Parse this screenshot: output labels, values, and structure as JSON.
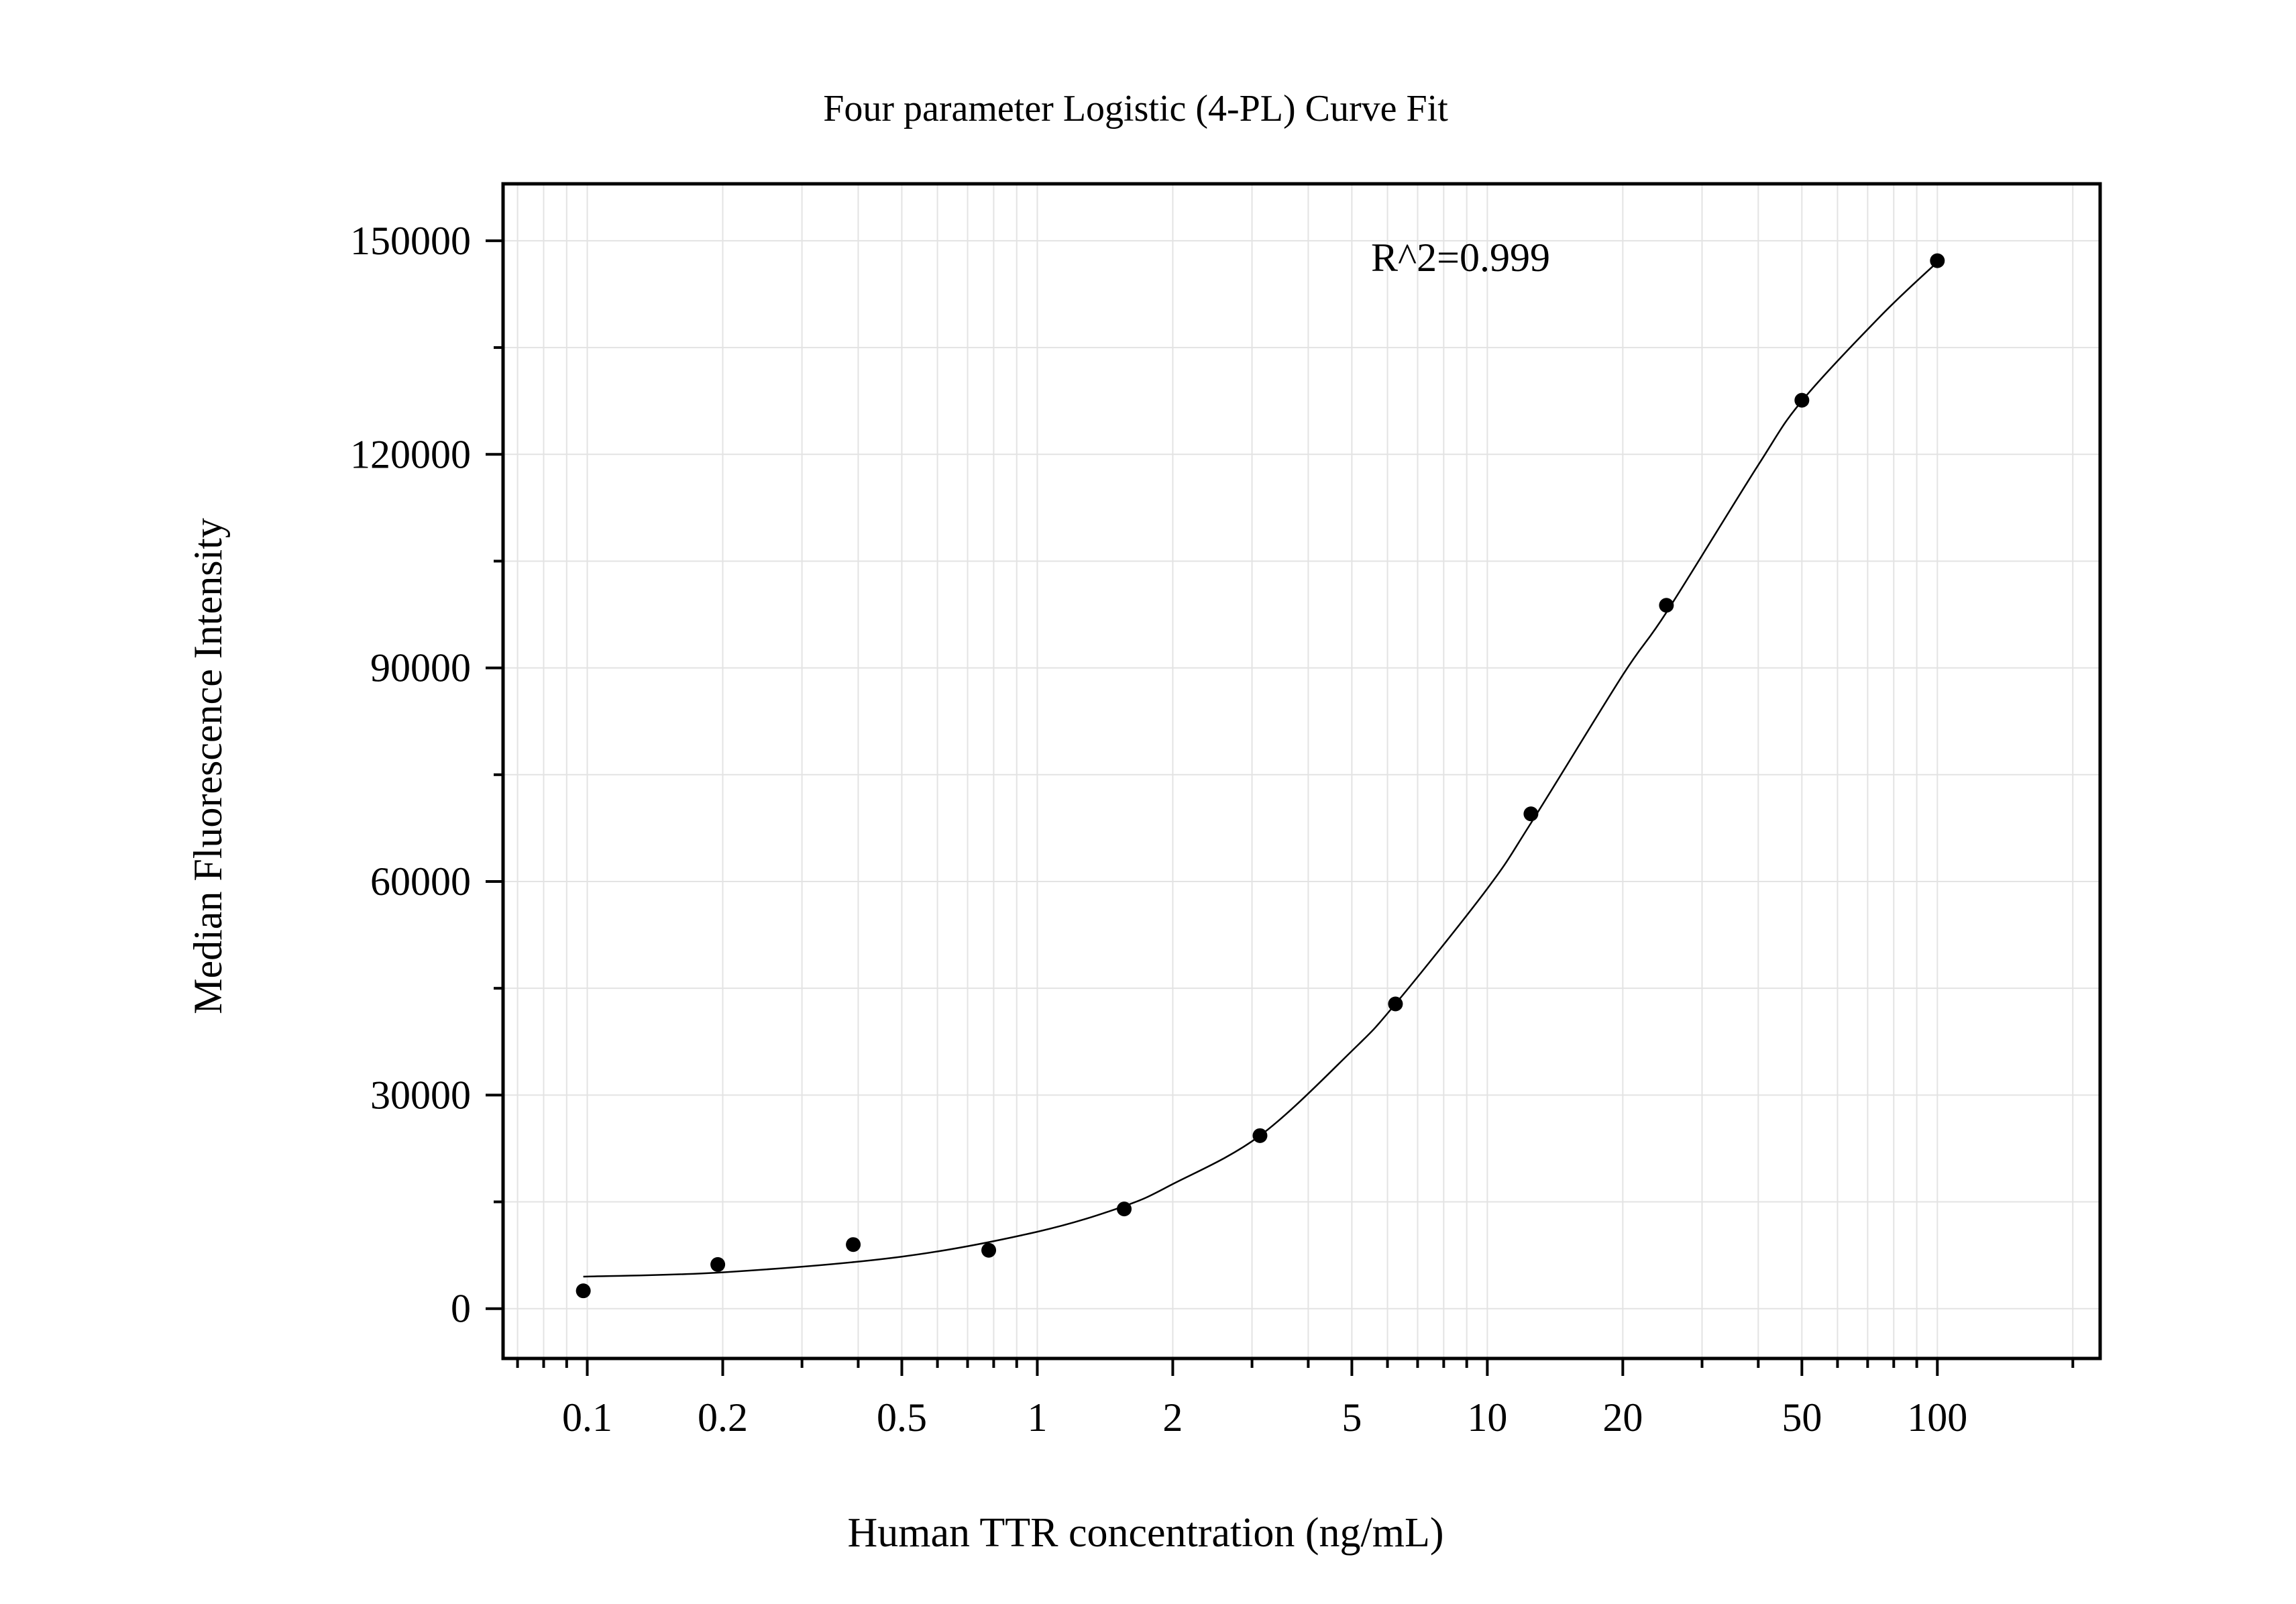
{
  "chart_data": {
    "type": "scatter",
    "title": "Four parameter Logistic (4-PL) Curve Fit",
    "xlabel": "Human TTR concentration (ng/mL)",
    "ylabel": "Median Fluorescence Intensity",
    "annotation": "R^2=0.999",
    "x_scale": "log",
    "xlim": [
      0.065,
      230
    ],
    "ylim": [
      -7000,
      158000
    ],
    "x_ticks": [
      {
        "value": 0.1,
        "label": "0.1"
      },
      {
        "value": 0.2,
        "label": "0.2"
      },
      {
        "value": 0.5,
        "label": "0.5"
      },
      {
        "value": 1,
        "label": "1"
      },
      {
        "value": 2,
        "label": "2"
      },
      {
        "value": 5,
        "label": "5"
      },
      {
        "value": 10,
        "label": "10"
      },
      {
        "value": 20,
        "label": "20"
      },
      {
        "value": 50,
        "label": "50"
      },
      {
        "value": 100,
        "label": "100"
      }
    ],
    "y_ticks": [
      {
        "value": 0,
        "label": "0"
      },
      {
        "value": 30000,
        "label": "30000"
      },
      {
        "value": 60000,
        "label": "60000"
      },
      {
        "value": 90000,
        "label": "90000"
      },
      {
        "value": 120000,
        "label": "120000"
      },
      {
        "value": 150000,
        "label": "150000"
      }
    ],
    "grid": true,
    "series": [
      {
        "type": "scatter",
        "x": [
          0.098,
          0.195,
          0.39,
          0.78,
          1.56,
          3.125,
          6.25,
          12.5,
          25,
          50,
          100
        ],
        "y": [
          2500,
          6200,
          9000,
          8200,
          14000,
          24300,
          42800,
          69500,
          98800,
          127600,
          147200
        ],
        "color": "#000000"
      },
      {
        "type": "line",
        "x": [
          0.098,
          0.2,
          0.5,
          1,
          1.56,
          2,
          3.125,
          5,
          6.25,
          10,
          12.5,
          20,
          25,
          40,
          50,
          75,
          100
        ],
        "y": [
          4500,
          5100,
          7300,
          10800,
          14400,
          17500,
          24300,
          36200,
          42800,
          59000,
          68200,
          89000,
          97800,
          118500,
          127500,
          139500,
          147000
        ],
        "color": "#000000"
      }
    ]
  }
}
